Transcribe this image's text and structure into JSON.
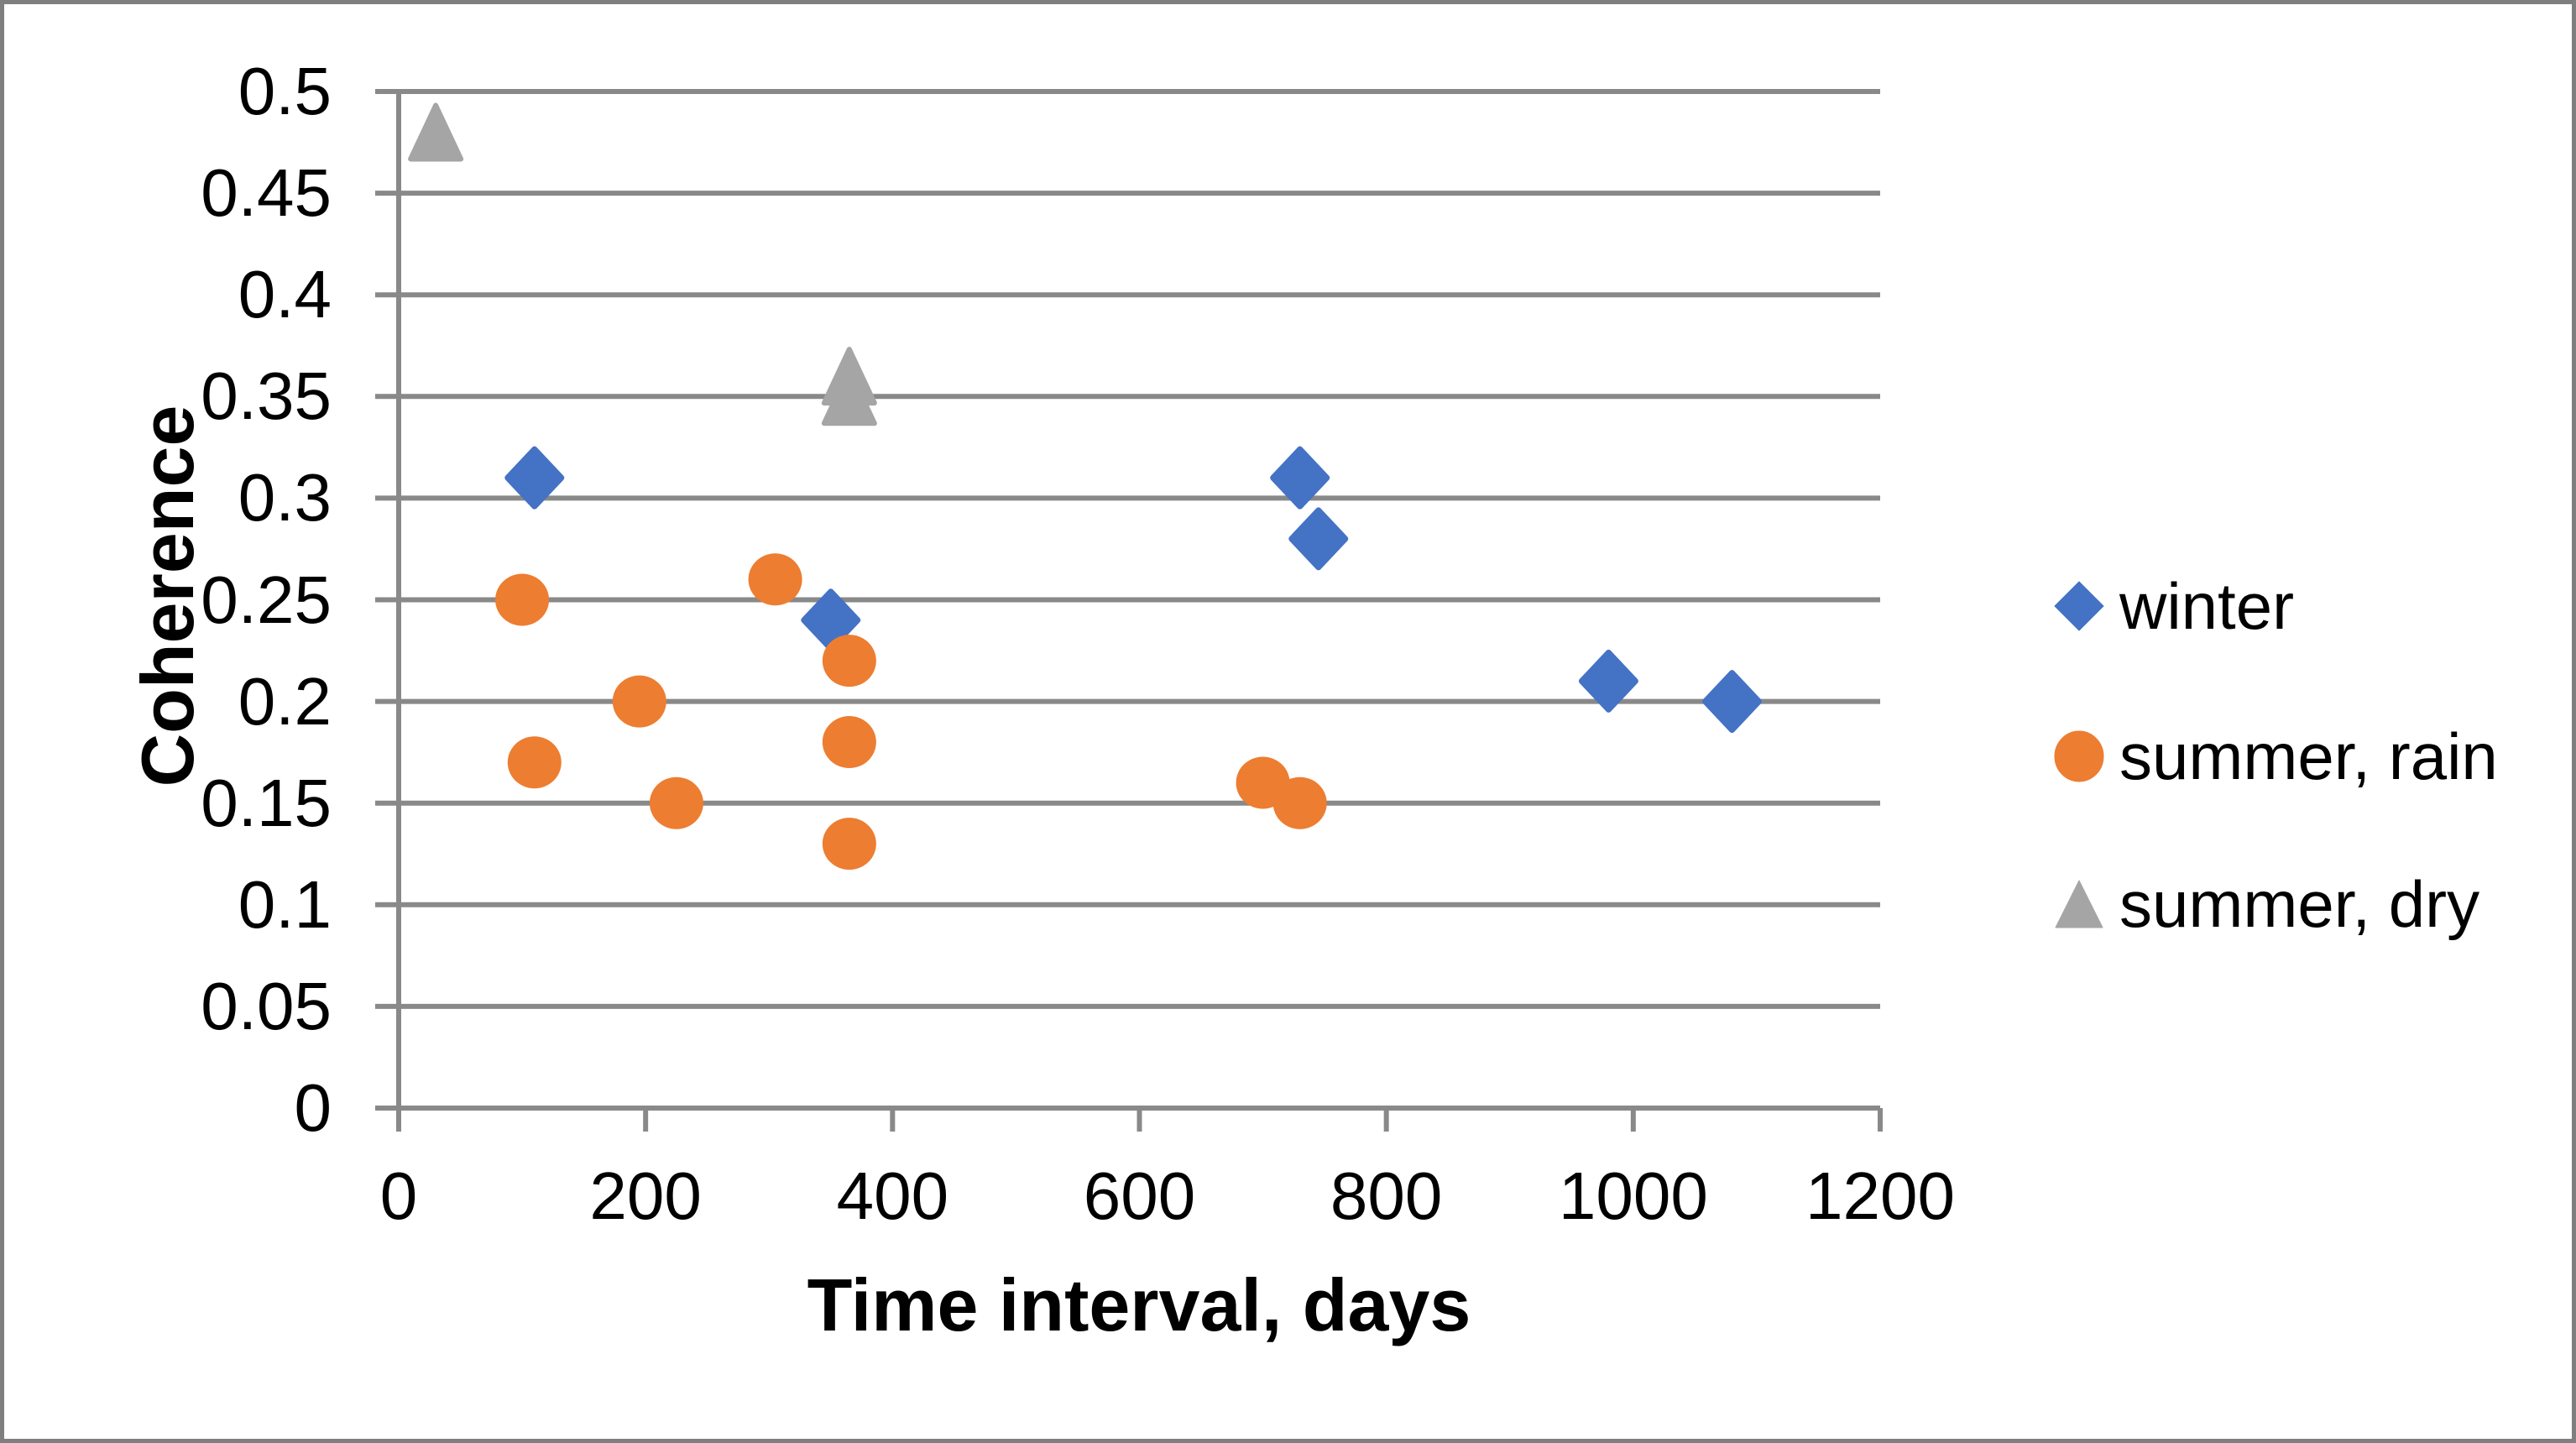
{
  "chart_data": {
    "type": "scatter",
    "title": "",
    "xlabel": "Time interval, days",
    "ylabel": "Coherence",
    "xlim": [
      0,
      1200
    ],
    "ylim": [
      0,
      0.5
    ],
    "x_ticks": [
      0,
      200,
      400,
      600,
      800,
      1000,
      1200
    ],
    "x_tick_labels": [
      "0",
      "200",
      "400",
      "600",
      "800",
      "1000",
      "1200"
    ],
    "y_ticks": [
      0,
      0.05,
      0.1,
      0.15,
      0.2,
      0.25,
      0.3,
      0.35,
      0.4,
      0.45,
      0.5
    ],
    "y_tick_labels": [
      "0",
      "0.05",
      "0.1",
      "0.15",
      "0.2",
      "0.25",
      "0.3",
      "0.35",
      "0.4",
      "0.45",
      "0.5"
    ],
    "grid": "horizontal-gridlines-on",
    "legend_position": "right",
    "series": [
      {
        "name": "winter",
        "marker": "diamond",
        "color": "#4472C4",
        "points": [
          [
            110,
            0.31
          ],
          [
            350,
            0.24
          ],
          [
            730,
            0.31
          ],
          [
            745,
            0.28
          ],
          [
            980,
            0.21
          ],
          [
            1080,
            0.2
          ]
        ]
      },
      {
        "name": "summer, rain",
        "marker": "circle",
        "color": "#ED7D31",
        "points": [
          [
            100,
            0.25
          ],
          [
            110,
            0.17
          ],
          [
            195,
            0.2
          ],
          [
            225,
            0.15
          ],
          [
            305,
            0.26
          ],
          [
            365,
            0.22
          ],
          [
            365,
            0.18
          ],
          [
            365,
            0.13
          ],
          [
            700,
            0.16
          ],
          [
            730,
            0.15
          ]
        ]
      },
      {
        "name": "summer, dry",
        "marker": "triangle",
        "color": "#A5A5A5",
        "points": [
          [
            30,
            0.48
          ],
          [
            365,
            0.36
          ],
          [
            365,
            0.35
          ]
        ]
      }
    ],
    "colors": {
      "axis": "#898989",
      "grid": "#898989",
      "text": "#000000",
      "border": "#7F7F7F",
      "background": "#FFFFFF"
    }
  }
}
